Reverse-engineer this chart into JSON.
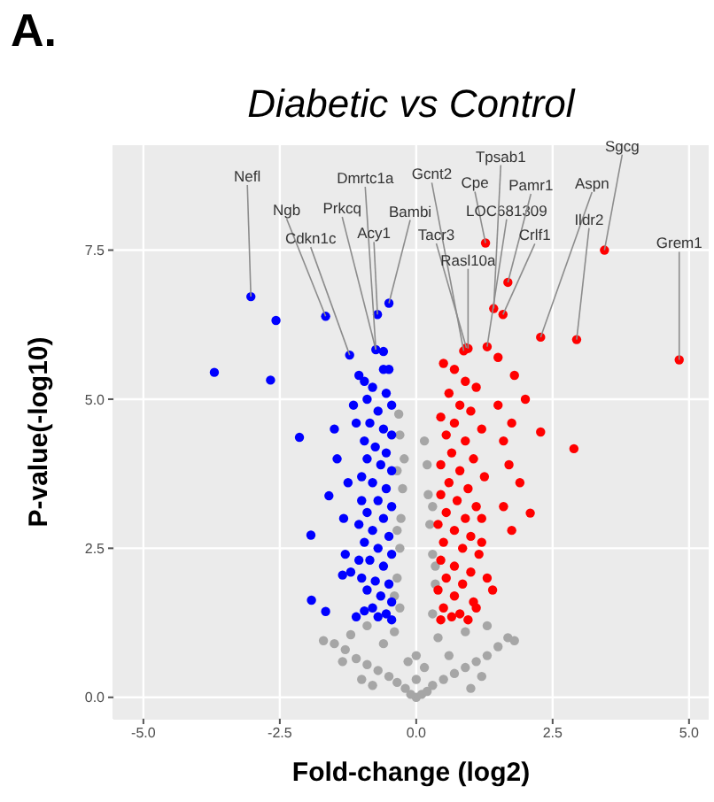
{
  "chart_data": {
    "type": "scatter",
    "title": "Diabetic vs Control",
    "xlabel": "Fold-change (log2)",
    "ylabel": "P-value(-log10)",
    "xlim": [
      -5.55,
      5.36
    ],
    "ylim": [
      -0.36,
      9.26
    ],
    "xticks": [
      {
        "value": -5,
        "label": "-5.0"
      },
      {
        "value": -2.5,
        "label": "-2.5"
      },
      {
        "value": 0,
        "label": "0.0"
      },
      {
        "value": 2.5,
        "label": "2.5"
      },
      {
        "value": 5,
        "label": "5.0"
      }
    ],
    "yticks": [
      {
        "value": 0,
        "label": "0.0"
      },
      {
        "value": 2.5,
        "label": "2.5"
      },
      {
        "value": 5,
        "label": "5.0"
      },
      {
        "value": 7.5,
        "label": "7.5"
      }
    ],
    "grid": true,
    "marker": "circle",
    "series": [
      {
        "color": "#a6a6a6",
        "x": [
          0,
          0.1,
          -0.1,
          0.2,
          -0.2,
          0.3,
          -0.35,
          0.5,
          -0.5,
          0.7,
          -0.7,
          0.9,
          -0.9,
          1.1,
          -1.1,
          1.3,
          -1.3,
          1.5,
          -1.5,
          1.68,
          1.8,
          -1.7,
          -1.35,
          1.2,
          -0.8,
          0.6,
          -0.6,
          0.4,
          -0.4,
          0.9,
          -0.9,
          1.3,
          -1.2,
          0.3,
          -0.3,
          0.35,
          -0.35,
          0.3,
          -0.3,
          0.25,
          -0.28,
          0.22,
          -0.25,
          0.2,
          -0.22,
          0.15,
          -0.3,
          -0.35,
          0.3,
          -0.35,
          0.35,
          -0.4,
          0,
          0,
          0.15,
          -0.15,
          1,
          -1,
          -0.32
        ],
        "values": [
          0,
          0.05,
          0.05,
          0.1,
          0.15,
          0.2,
          0.25,
          0.3,
          0.35,
          0.4,
          0.45,
          0.5,
          0.55,
          0.6,
          0.65,
          0.7,
          0.8,
          0.85,
          0.9,
          1,
          0.95,
          0.95,
          0.6,
          0.35,
          0.2,
          0.7,
          0.9,
          1,
          1.1,
          1.1,
          1.2,
          1.2,
          1.05,
          1.4,
          1.5,
          1.9,
          2,
          2.4,
          2.5,
          2.9,
          3,
          3.4,
          3.5,
          3.9,
          4,
          4.3,
          4.4,
          3.8,
          3.2,
          2.8,
          2.2,
          1.7,
          0.3,
          0.7,
          0.5,
          0.6,
          0.15,
          0.3,
          4.75
        ]
      },
      {
        "color": "#0000ff",
        "x": [
          -3.03,
          -1.66,
          -1.22,
          -0.74,
          -0.71,
          -0.5,
          -3.7,
          -2.67,
          -2.57,
          -2.14,
          -1.93,
          -1.92,
          -1.66,
          -1.6,
          -1.33,
          -1.3,
          -1.2,
          -1.35,
          -1.1,
          -1.5,
          -1.45,
          -1.25,
          -1.1,
          -1.15,
          -1.05,
          -0.95,
          -0.9,
          -0.8,
          -0.6,
          -0.5,
          -0.55,
          -0.45,
          -0.7,
          -0.85,
          -0.6,
          -0.45,
          -0.75,
          -0.55,
          -0.9,
          -0.65,
          -0.45,
          -1,
          -0.8,
          -0.55,
          -0.7,
          -0.45,
          -0.9,
          -0.6,
          -1.05,
          -0.8,
          -0.5,
          -0.95,
          -0.7,
          -0.45,
          -0.85,
          -0.6,
          -1,
          -0.75,
          -0.5,
          -0.9,
          -0.65,
          -0.45,
          -0.8,
          -0.55,
          -0.7,
          -0.45,
          -0.95,
          -1.05,
          -1,
          -0.95,
          -0.6
        ],
        "values": [
          6.72,
          6.39,
          5.74,
          5.83,
          6.42,
          6.61,
          5.45,
          5.32,
          6.32,
          4.36,
          2.72,
          1.63,
          1.44,
          3.38,
          3,
          2.4,
          2.1,
          2.05,
          1.35,
          4.5,
          4,
          3.6,
          4.6,
          4.9,
          5.4,
          5.3,
          5,
          5.2,
          5.5,
          5.5,
          5.1,
          4.9,
          4.8,
          4.6,
          4.5,
          4.4,
          4.2,
          4.1,
          4,
          3.9,
          3.8,
          3.7,
          3.6,
          3.5,
          3.3,
          3.2,
          3.1,
          3,
          2.9,
          2.8,
          2.7,
          2.6,
          2.5,
          2.4,
          2.3,
          2.2,
          2,
          1.95,
          1.9,
          1.8,
          1.7,
          1.6,
          1.5,
          1.4,
          1.35,
          1.3,
          1.45,
          2.3,
          3.3,
          4.3,
          5.8
        ]
      },
      {
        "color": "#ff0000",
        "x": [
          0.87,
          0.92,
          0.95,
          1.27,
          1.3,
          1.42,
          1.68,
          1.59,
          2.28,
          2.94,
          3.45,
          4.82,
          2.89,
          2.28,
          2.09,
          1.9,
          1.7,
          1.6,
          1.75,
          2,
          1.8,
          1.5,
          1.5,
          1.3,
          1.4,
          1.6,
          1.75,
          1.2,
          0.5,
          0.7,
          0.9,
          1.1,
          0.6,
          0.8,
          1,
          0.45,
          0.7,
          1.2,
          0.55,
          0.9,
          0.65,
          1.05,
          0.45,
          0.8,
          1.25,
          0.6,
          0.95,
          0.45,
          0.75,
          1.1,
          0.55,
          0.9,
          0.4,
          0.7,
          1,
          0.5,
          0.85,
          1.15,
          0.45,
          0.7,
          1,
          0.55,
          0.85,
          0.4,
          0.7,
          1.05,
          0.5,
          0.8,
          0.45,
          0.65,
          0.95,
          1.1,
          1.2
        ],
        "values": [
          5.81,
          5.86,
          5.85,
          7.62,
          5.88,
          6.52,
          6.96,
          6.42,
          6.04,
          6,
          7.5,
          5.66,
          4.17,
          4.45,
          3.09,
          3.6,
          3.9,
          4.3,
          4.6,
          5,
          5.4,
          5.7,
          4.9,
          2,
          1.8,
          3.2,
          2.8,
          2.6,
          5.6,
          5.5,
          5.3,
          5.2,
          5.1,
          4.9,
          4.8,
          4.7,
          4.6,
          4.5,
          4.4,
          4.3,
          4.1,
          4,
          3.9,
          3.8,
          3.7,
          3.6,
          3.5,
          3.4,
          3.3,
          3.2,
          3.1,
          3,
          2.9,
          2.8,
          2.7,
          2.6,
          2.5,
          2.4,
          2.3,
          2.2,
          2.1,
          2,
          1.9,
          1.8,
          1.7,
          1.6,
          1.5,
          1.4,
          1.3,
          1.35,
          1.3,
          1.5,
          3
        ]
      }
    ],
    "annotations": [
      "A.",
      {
        "text": "Nefl",
        "x": -3.03,
        "y": 6.72
      },
      {
        "text": "Ngb",
        "x": -1.66,
        "y": 6.39
      },
      {
        "text": "Cdkn1c",
        "x": -1.22,
        "y": 5.74
      },
      {
        "text": "Dmrtc1a",
        "x": -0.74,
        "y": 5.83
      },
      {
        "text": "Prkcq",
        "x": -0.74,
        "y": 5.83
      },
      {
        "text": "Acy1",
        "x": -0.71,
        "y": 6.42
      },
      {
        "text": "Bambi",
        "x": -0.5,
        "y": 6.61
      },
      {
        "text": "Gcnt2",
        "x": 0.87,
        "y": 5.81
      },
      {
        "text": "Tacr3",
        "x": 0.92,
        "y": 5.86
      },
      {
        "text": "Rasl10a",
        "x": 0.95,
        "y": 5.85
      },
      {
        "text": "Cpe",
        "x": 1.27,
        "y": 7.62
      },
      {
        "text": "LOC681309",
        "x": 1.3,
        "y": 5.88
      },
      {
        "text": "Tpsab1",
        "x": 1.42,
        "y": 6.52
      },
      {
        "text": "Pamr1",
        "x": 1.68,
        "y": 6.96
      },
      {
        "text": "Crlf1",
        "x": 1.59,
        "y": 6.42
      },
      {
        "text": "Aspn",
        "x": 2.28,
        "y": 6.04
      },
      {
        "text": "Ildr2",
        "x": 2.94,
        "y": 6
      },
      {
        "text": "Sgcg",
        "x": 3.45,
        "y": 7.5
      },
      {
        "text": "Grem1",
        "x": 4.82,
        "y": 5.66
      }
    ]
  }
}
